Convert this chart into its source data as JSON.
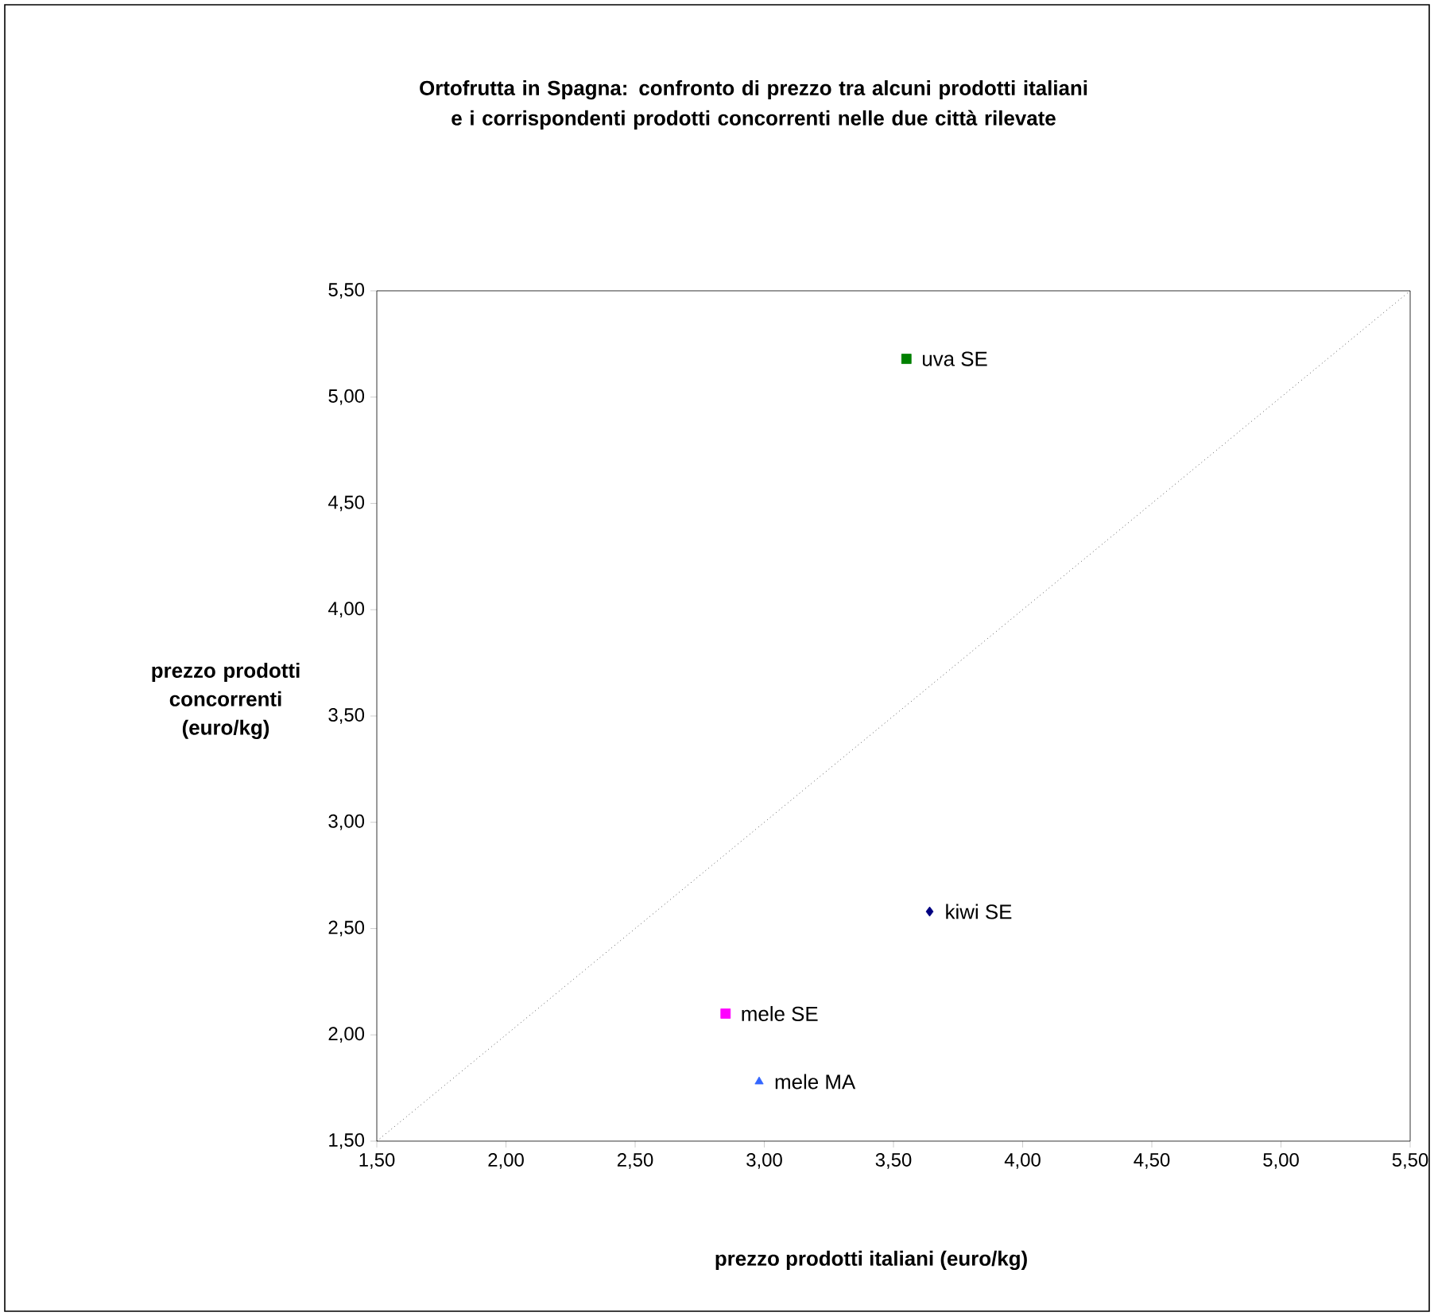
{
  "chart_data": {
    "type": "scatter",
    "title": "Ortofrutta in Spagna: confronto di prezzo tra alcuni prodotti italiani e i corrispondenti  prodotti concorrenti nelle due città rilevate",
    "xlabel": "prezzo prodotti italiani (euro/kg)",
    "ylabel": "prezzo prodotti concorrenti (euro/kg)",
    "xlim": [
      1.5,
      5.5
    ],
    "ylim": [
      1.5,
      5.5
    ],
    "xticks": [
      {
        "value": 1.5,
        "label": "1,50"
      },
      {
        "value": 2.0,
        "label": "2,00"
      },
      {
        "value": 2.5,
        "label": "2,50"
      },
      {
        "value": 3.0,
        "label": "3,00"
      },
      {
        "value": 3.5,
        "label": "3,50"
      },
      {
        "value": 4.0,
        "label": "4,00"
      },
      {
        "value": 4.5,
        "label": "4,50"
      },
      {
        "value": 5.0,
        "label": "5,00"
      },
      {
        "value": 5.5,
        "label": "5,50"
      }
    ],
    "yticks": [
      {
        "value": 1.5,
        "label": "1,50"
      },
      {
        "value": 2.0,
        "label": "2,00"
      },
      {
        "value": 2.5,
        "label": "2,50"
      },
      {
        "value": 3.0,
        "label": "3,00"
      },
      {
        "value": 3.5,
        "label": "3,50"
      },
      {
        "value": 4.0,
        "label": "4,00"
      },
      {
        "value": 4.5,
        "label": "4,50"
      },
      {
        "value": 5.0,
        "label": "5,00"
      },
      {
        "value": 5.5,
        "label": "5,50"
      }
    ],
    "grid": false,
    "legend": false,
    "series": [
      {
        "name": "uva SE",
        "color": "#008000",
        "marker": "square",
        "x": [
          3.55
        ],
        "values": [
          5.18
        ]
      },
      {
        "name": "kiwi SE",
        "color": "#000080",
        "marker": "diamond",
        "x": [
          3.64
        ],
        "values": [
          2.58
        ]
      },
      {
        "name": "mele SE",
        "color": "#ff00ff",
        "marker": "square",
        "x": [
          2.85
        ],
        "values": [
          2.1
        ]
      },
      {
        "name": "mele MA",
        "color": "#3366ff",
        "marker": "triangle",
        "x": [
          2.98
        ],
        "values": [
          1.78
        ]
      },
      {
        "type": "line",
        "color": "#000000",
        "line_style": "dotted",
        "marker": "none",
        "x": [
          1.5,
          5.5
        ],
        "values": [
          1.5,
          5.5
        ]
      }
    ]
  }
}
